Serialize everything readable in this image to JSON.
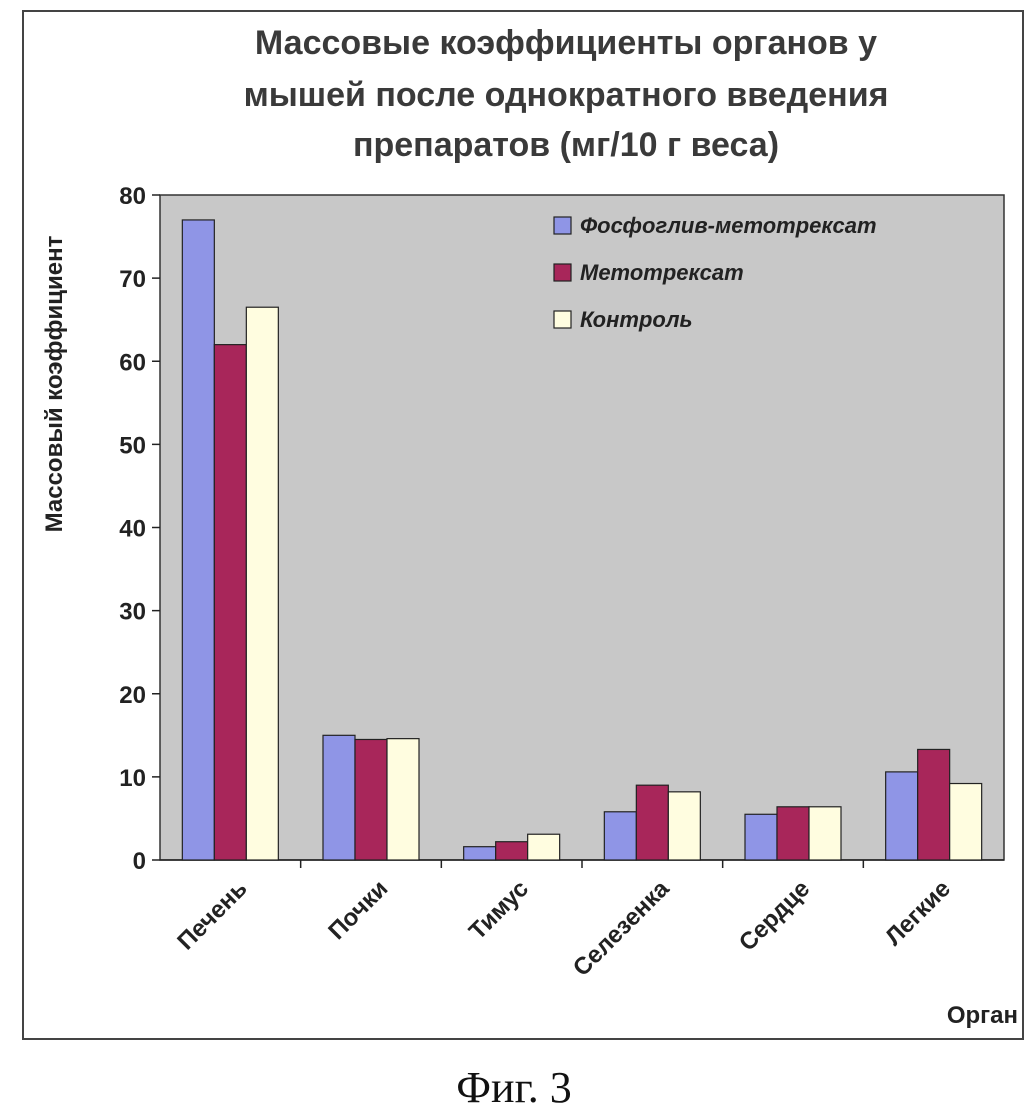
{
  "chart_data": {
    "type": "bar",
    "title_lines": [
      "Массовые коэффициенты органов у",
      "мышей после однократного введения",
      "препаратов (мг/10 г веса)"
    ],
    "xlabel": "Орган",
    "ylabel": "Массовый коэффициент",
    "ylim": [
      0,
      80
    ],
    "yticks": [
      0,
      10,
      20,
      30,
      40,
      50,
      60,
      70,
      80
    ],
    "categories": [
      "Печень",
      "Почки",
      "Тимус",
      "Селезенка",
      "Сердце",
      "Легкие"
    ],
    "series": [
      {
        "name": "Фосфоглив-метотрексат",
        "color": "#8f95e6",
        "values": [
          77,
          15,
          1.6,
          5.8,
          5.5,
          10.6
        ]
      },
      {
        "name": "Метотрексат",
        "color": "#a8265a",
        "values": [
          62,
          14.5,
          2.2,
          9,
          6.4,
          13.3
        ]
      },
      {
        "name": "Контроль",
        "color": "#fffde0",
        "values": [
          66.5,
          14.6,
          3.1,
          8.2,
          6.4,
          9.2
        ]
      }
    ],
    "legend_position": "top-right",
    "plot_background": "#c8c8c8",
    "grid": false
  },
  "caption": "Фиг. 3"
}
